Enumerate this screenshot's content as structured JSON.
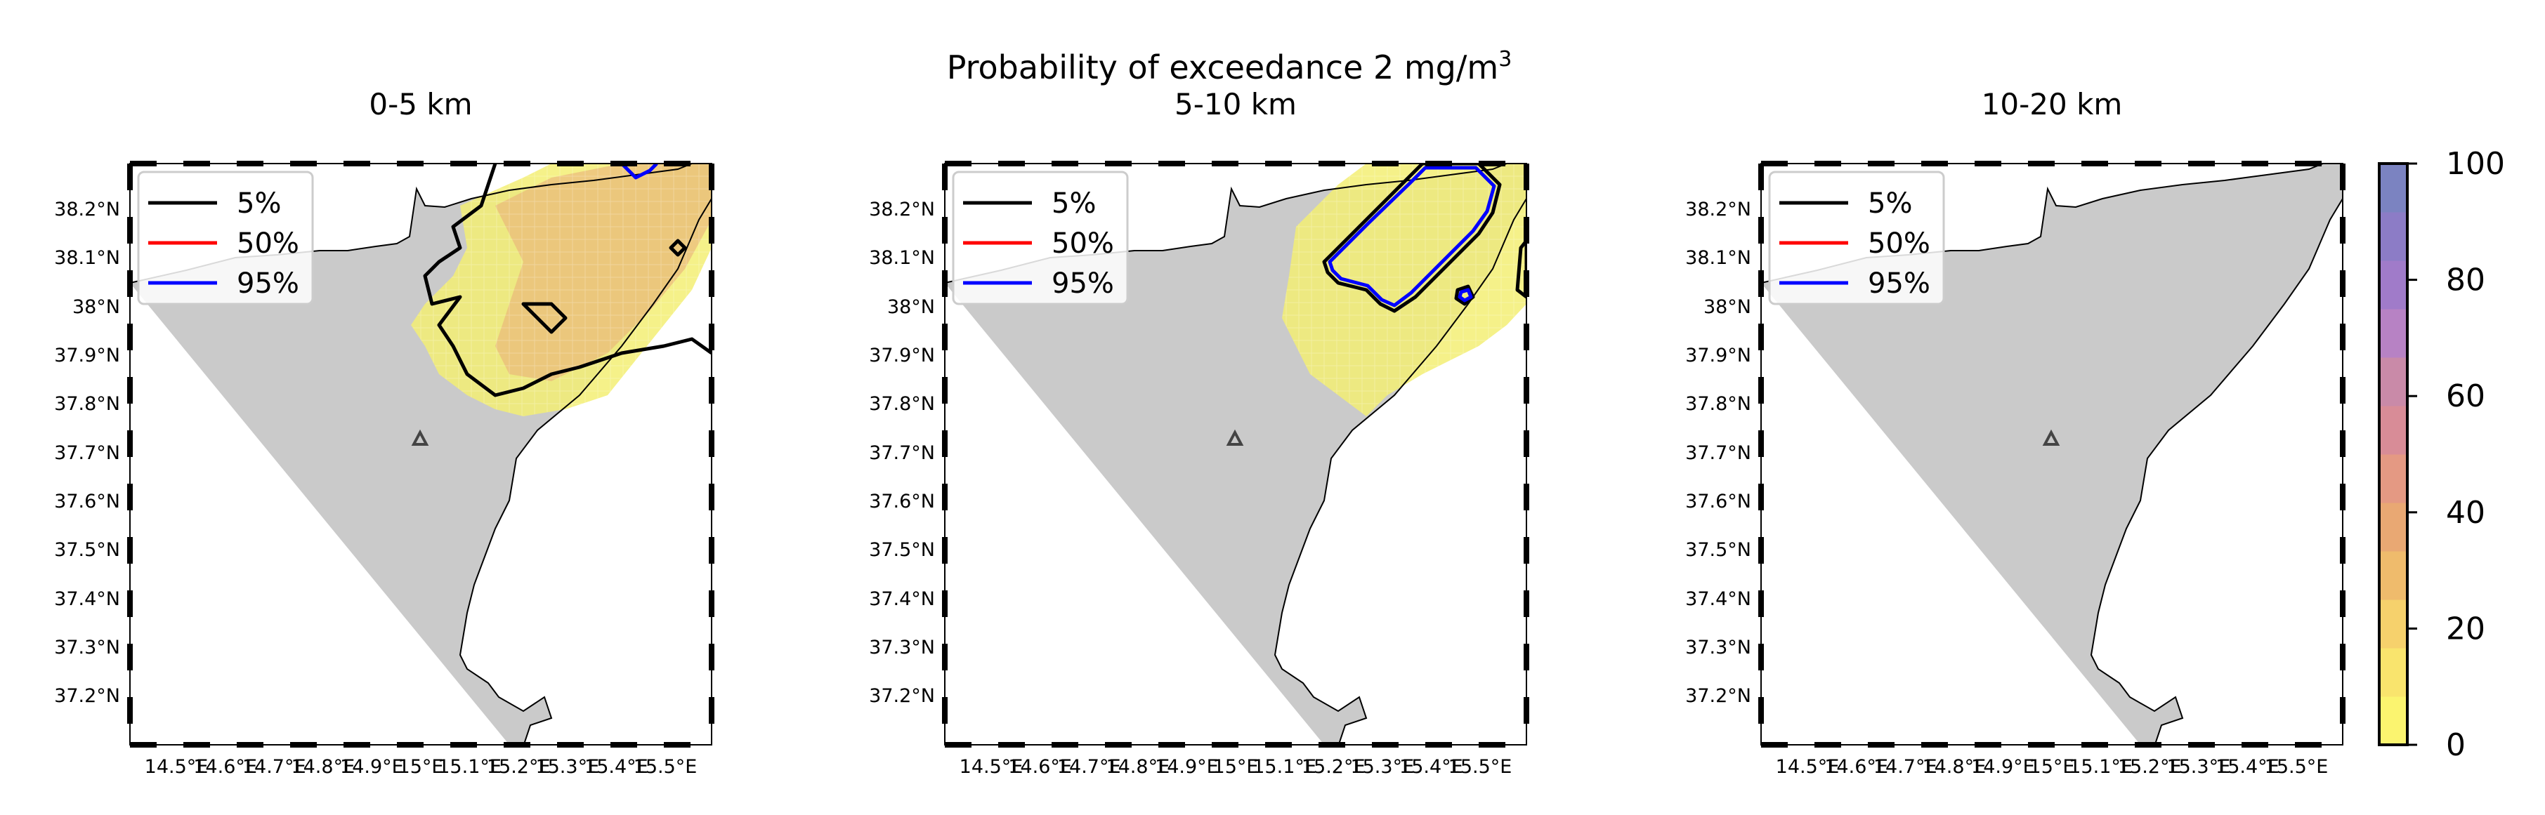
{
  "figure": {
    "title": "Probability of exceedance 2 mg/m",
    "title_superscript": "3"
  },
  "panels": [
    {
      "subtitle": "0-5 km",
      "has_cloud": true
    },
    {
      "subtitle": "5-10 km",
      "has_cloud": true
    },
    {
      "subtitle": "10-20 km",
      "has_cloud": false
    }
  ],
  "axes": {
    "lat_ticks": [
      "38.2°N",
      "38.1°N",
      "38°N",
      "37.9°N",
      "37.8°N",
      "37.7°N",
      "37.6°N",
      "37.5°N",
      "37.4°N",
      "37.3°N",
      "37.2°N"
    ],
    "lon_ticks": [
      "14.5°E",
      "14.6°E",
      "14.7°E",
      "14.8°E",
      "14.9°E",
      "15°E",
      "15.1°E",
      "15.2°E",
      "15.3°E",
      "15.4°E",
      "15.5°E"
    ]
  },
  "legend": [
    {
      "label": "5%",
      "color": "#000000"
    },
    {
      "label": "50%",
      "color": "#ff0000"
    },
    {
      "label": "95%",
      "color": "#0000ff"
    }
  ],
  "colorbar": {
    "ticks": [
      "0",
      "20",
      "40",
      "60",
      "80",
      "100"
    ],
    "colors": [
      "#fbf46f",
      "#f9e46d",
      "#f6d16c",
      "#efbb6c",
      "#e9a873",
      "#e49983",
      "#d88c97",
      "#c98aa8",
      "#b782c4",
      "#a07bc9",
      "#8c7cc6",
      "#7b83c1"
    ]
  },
  "colors": {
    "land": "#cacaca",
    "sea": "#ffffff",
    "cloud_low": "#f3ee74",
    "cloud_mid": "#e9b07a",
    "volcano": "#444444"
  },
  "volcano_icon": "triangle-icon"
}
